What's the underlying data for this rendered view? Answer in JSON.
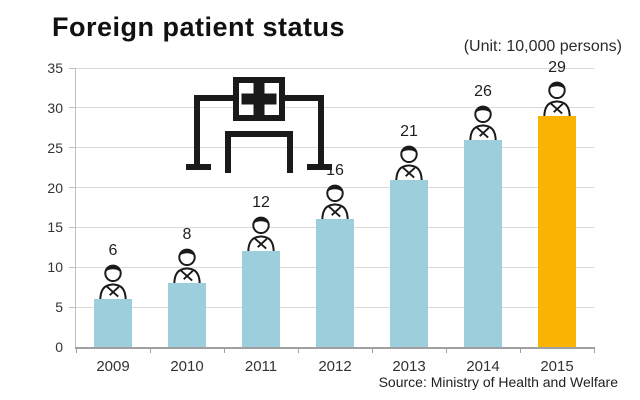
{
  "header": {
    "title": "Foreign patient status",
    "unit_label": "(Unit: 10,000 persons)"
  },
  "footer": {
    "source": "Source: Ministry of Health and Welfare"
  },
  "chart_data": {
    "type": "bar",
    "title": "Foreign patient status",
    "categories": [
      "2009",
      "2010",
      "2011",
      "2012",
      "2013",
      "2014",
      "2015"
    ],
    "values": [
      6,
      8,
      12,
      16,
      21,
      26,
      29
    ],
    "unit": "10,000 persons",
    "xlabel": "",
    "ylabel": "",
    "ylim": [
      0,
      35
    ],
    "yticks": [
      0,
      5,
      10,
      15,
      20,
      25,
      30,
      35
    ],
    "grid": true,
    "legend_position": "none",
    "bar_default_color": "#9CCEDC",
    "bar_highlight_color": "#F8B400",
    "highlighted_category": "2015",
    "bar_top_icon": "doctor-icon",
    "plot_decoration_icon": "hospital-cross-icon",
    "source": "Source: Ministry of Health and Welfare"
  },
  "colors": {
    "background": "#FFFFFF",
    "gridline": "#D9D9D9",
    "axis": "#A0A0A0",
    "label_text": "#333333",
    "title_text": "#111111",
    "icon_stroke": "#1A1A1A"
  }
}
